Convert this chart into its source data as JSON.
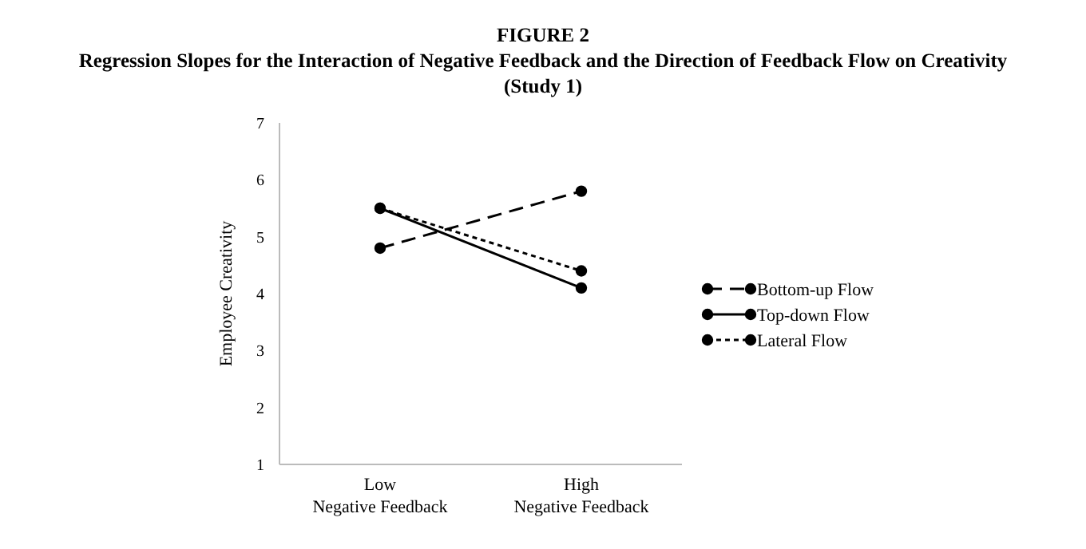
{
  "chart_data": {
    "type": "line",
    "title": "FIGURE 2",
    "subtitle": "Regression Slopes for the Interaction of Negative Feedback and the Direction of Feedback Flow on Creativity (Study 1)",
    "ylabel": "Employee Creativity",
    "categories": [
      "Low\nNegative Feedback",
      "High\nNegative Feedback"
    ],
    "series": [
      {
        "name": "Bottom-up Flow",
        "color": "#000000",
        "values": [
          4.8,
          5.8
        ],
        "line_style": "dashed"
      },
      {
        "name": "Top-down Flow",
        "color": "#000000",
        "values": [
          5.5,
          4.1
        ],
        "line_style": "solid"
      },
      {
        "name": "Lateral Flow",
        "color": "#000000",
        "values": [
          5.5,
          4.4
        ],
        "line_style": "dotted"
      }
    ],
    "ylim": [
      1,
      7
    ],
    "yticks": [
      1,
      2,
      3,
      4,
      5,
      6,
      7
    ],
    "grid": false,
    "legend": "right",
    "marker": "circle"
  }
}
